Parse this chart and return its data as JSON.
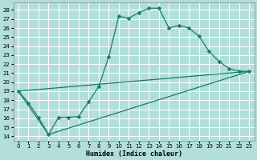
{
  "title": "",
  "xlabel": "Humidex (Indice chaleur)",
  "bg_color": "#b2dfdb",
  "grid_color": "#ffffff",
  "line_color": "#1a7a6e",
  "xlim": [
    -0.5,
    23.5
  ],
  "ylim": [
    13.5,
    28.8
  ],
  "yticks": [
    14,
    15,
    16,
    17,
    18,
    19,
    20,
    21,
    22,
    23,
    24,
    25,
    26,
    27,
    28
  ],
  "xticks": [
    0,
    1,
    2,
    3,
    4,
    5,
    6,
    7,
    8,
    9,
    10,
    11,
    12,
    13,
    14,
    15,
    16,
    17,
    18,
    19,
    20,
    21,
    22,
    23
  ],
  "line1_x": [
    0,
    1,
    2,
    3,
    4,
    5,
    6,
    7,
    8,
    9,
    10,
    11,
    12,
    13,
    14,
    15,
    16,
    17,
    18,
    19,
    20,
    21,
    22,
    23
  ],
  "line1_y": [
    19,
    17.7,
    16.1,
    14.2,
    16.1,
    16.1,
    16.2,
    17.8,
    19.5,
    22.8,
    27.3,
    27.1,
    27.7,
    28.2,
    28.2,
    26.0,
    26.3,
    26.0,
    25.1,
    23.4,
    22.3,
    21.5,
    21.2,
    21.2
  ],
  "line2_x": [
    0,
    3,
    23
  ],
  "line2_y": [
    19,
    14.2,
    21.2
  ],
  "line3_x": [
    0,
    23
  ],
  "line3_y": [
    19,
    21.2
  ],
  "markersize": 2.5,
  "linewidth": 0.9,
  "tick_fontsize": 5.0,
  "xlabel_fontsize": 6.0
}
